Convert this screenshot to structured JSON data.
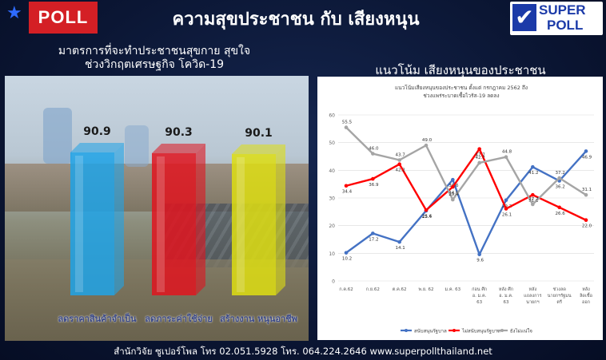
{
  "header": {
    "poll_label": "POLL",
    "title": "ความสุขประชาชน กับ เสียงหนุน",
    "logo_line1": "SUPER",
    "logo_line2": "POLL"
  },
  "left": {
    "title_line1": "มาตรการที่จะทำประชาชนสุขกาย สุขใจ",
    "title_line2": "ช่วงวิกฤตเศรษฐกิจ โควิด-19"
  },
  "right": {
    "title": "แนวโน้ม เสียงหนุนของประชาชน"
  },
  "footer": {
    "text": "สำนักวิจัย ซูเปอร์โพล โทร 02.051.5928  โทร. 064.224.2646 www.superpollthailand.net"
  },
  "colors": {
    "poll_red": "#d41f25",
    "bar_blue": "#1fa3e8",
    "bar_red": "#e0141f",
    "bar_yellow": "#dede12",
    "series_blue": "#4472c4",
    "series_red": "#ff0000",
    "series_gray": "#a5a5a5"
  },
  "chart_data": [
    {
      "type": "bar",
      "categories": [
        "ลดราคาสินค้าจำเป็น",
        "ลดภาระค่าใช้จ่าย",
        "สร้างงาน หนุนอาชีพ"
      ],
      "values": [
        90.9,
        90.3,
        90.1
      ],
      "title": "มาตรการที่จะทำประชาชนสุขกาย สุขใจ ช่วงวิกฤตเศรษฐกิจ โควิด-19",
      "colors": [
        "#1fa3e8",
        "#e0141f",
        "#dede12"
      ]
    },
    {
      "type": "line",
      "title": "แนวโน้มเสียงหนุนของประชาชน ตั้งแต่ กรกฎาคม 2562 ถึง ช่วงแพร่ระบาดเชื้อไวรัส-19 ลดลง",
      "categories": [
        "ก.ค.62",
        "ก.ย.62",
        "ต.ค.62",
        "พ.ย. 62",
        "ม.ค. 63",
        "ก่อน ศึก อ. ม.ค. 63",
        "หลัง ศึก อ. ม.ค. 63",
        "หลัง แถลงการ นายกฯ",
        "ช่วงลด นายกฯรัฐมน ตรี",
        "หลัง ลิดเชื้อ ออก"
      ],
      "ylim": [
        0,
        60
      ],
      "yticks": [
        0,
        10,
        20,
        30,
        40,
        50,
        60
      ],
      "series": [
        {
          "name": "สนับสนุนรัฐบาล",
          "color": "#4472c4",
          "values": [
            10.2,
            17.2,
            14.1,
            25.4,
            36.6,
            9.6,
            29.2,
            41.2,
            36.2,
            46.9
          ]
        },
        {
          "name": "ไม่สนับสนุนรัฐบาล",
          "color": "#ff0000",
          "values": [
            34.4,
            36.9,
            42.2,
            25.6,
            34.0,
            47.7,
            26.1,
            31.1,
            26.6,
            22.0
          ]
        },
        {
          "name": "ยังไม่แน่ใจ",
          "color": "#a5a5a5",
          "values": [
            55.5,
            46.0,
            43.7,
            49.0,
            29.4,
            42.7,
            44.8,
            27.7,
            37.2,
            31.1
          ]
        }
      ]
    }
  ]
}
